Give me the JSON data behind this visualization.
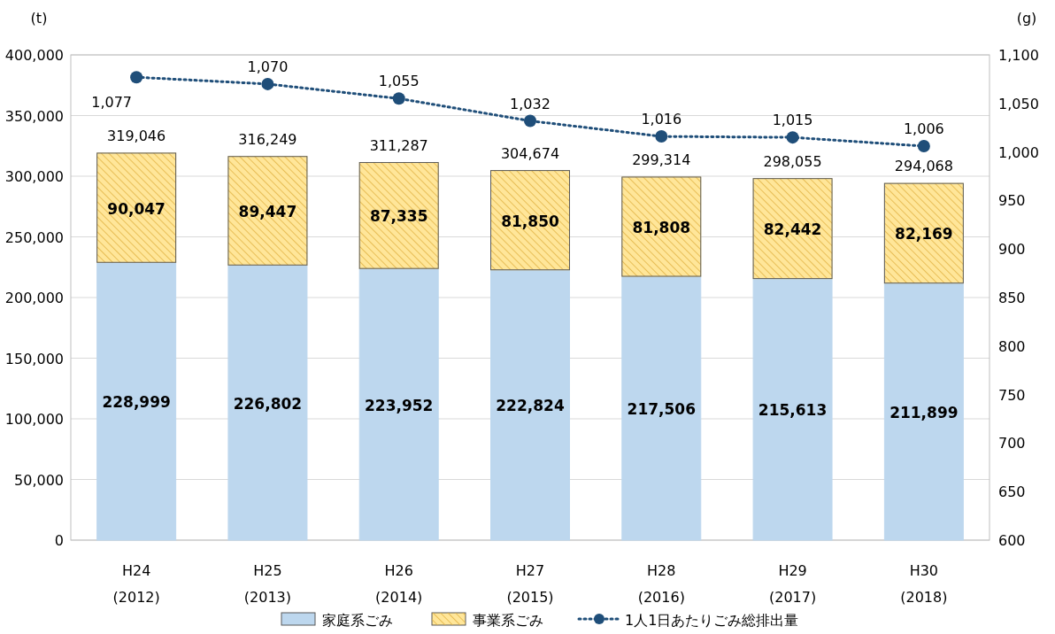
{
  "chart_data": {
    "type": "bar",
    "stacked": true,
    "ylabel": "(t)",
    "y2label": "(g)",
    "categories": [
      "H24\n(2012)",
      "H25\n(2013)",
      "H26\n(2014)",
      "H27\n(2015)",
      "H28\n(2016)",
      "H29\n(2017)",
      "H30\n(2018)"
    ],
    "series": [
      {
        "name": "家庭系ごみ",
        "color": "#bdd7ee",
        "values": [
          228999,
          226802,
          223952,
          222824,
          217506,
          215613,
          211899
        ],
        "value_labels": [
          "228,999",
          "226,802",
          "223,952",
          "222,824",
          "217,506",
          "215,613",
          "211,899"
        ]
      },
      {
        "name": "事業系ごみ",
        "color": "#ffe699",
        "values": [
          90047,
          89447,
          87335,
          81850,
          81808,
          82442,
          82169
        ],
        "value_labels": [
          "90,047",
          "89,447",
          "87,335",
          "81,850",
          "81,808",
          "82,442",
          "82,169"
        ]
      },
      {
        "name": "1人1日あたりごみ総排出量",
        "type": "line",
        "axis": "y2",
        "color": "#1f4e79",
        "marker": "circle",
        "line_style": "dotted",
        "values": [
          1077,
          1070,
          1055,
          1032,
          1016,
          1015,
          1006
        ],
        "value_labels": [
          "1,077",
          "1,070",
          "1,055",
          "1,032",
          "1,016",
          "1,015",
          "1,006"
        ]
      }
    ],
    "totals": [
      "319,046",
      "316,249",
      "311,287",
      "304,674",
      "299,314",
      "298,055",
      "294,068"
    ],
    "ylim": [
      0,
      400000
    ],
    "yticks": [
      0,
      {
        "value": 50000,
        "label": "50,000"
      },
      {
        "value": 100000,
        "label": "100,000"
      },
      {
        "value": 150000,
        "label": "150,000"
      },
      {
        "value": 200000,
        "label": "200,000"
      },
      {
        "value": 250000,
        "label": "250,000"
      },
      {
        "value": 300000,
        "label": "300,000"
      },
      {
        "value": 350000,
        "label": "350,000"
      },
      {
        "value": 400000,
        "label": "400,000"
      }
    ],
    "y2lim": [
      600,
      1100
    ],
    "y2ticks": [
      600,
      650,
      700,
      750,
      800,
      850,
      900,
      950,
      {
        "value": 1000,
        "label": "1,000"
      },
      {
        "value": 1050,
        "label": "1,050"
      },
      {
        "value": 1100,
        "label": "1,100"
      }
    ],
    "grid": "y",
    "legend": "bottom"
  }
}
